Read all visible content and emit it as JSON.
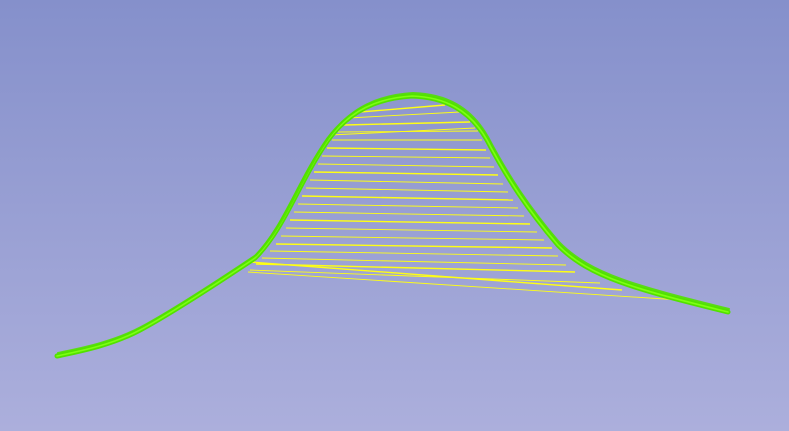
{
  "viewport": {
    "background_top": "#8590cb",
    "background_bottom": "#acafdc"
  },
  "scene": {
    "curve_color": "#52e100",
    "curve_highlight": "#7dff12",
    "hatch_color": "#ffff14"
  }
}
